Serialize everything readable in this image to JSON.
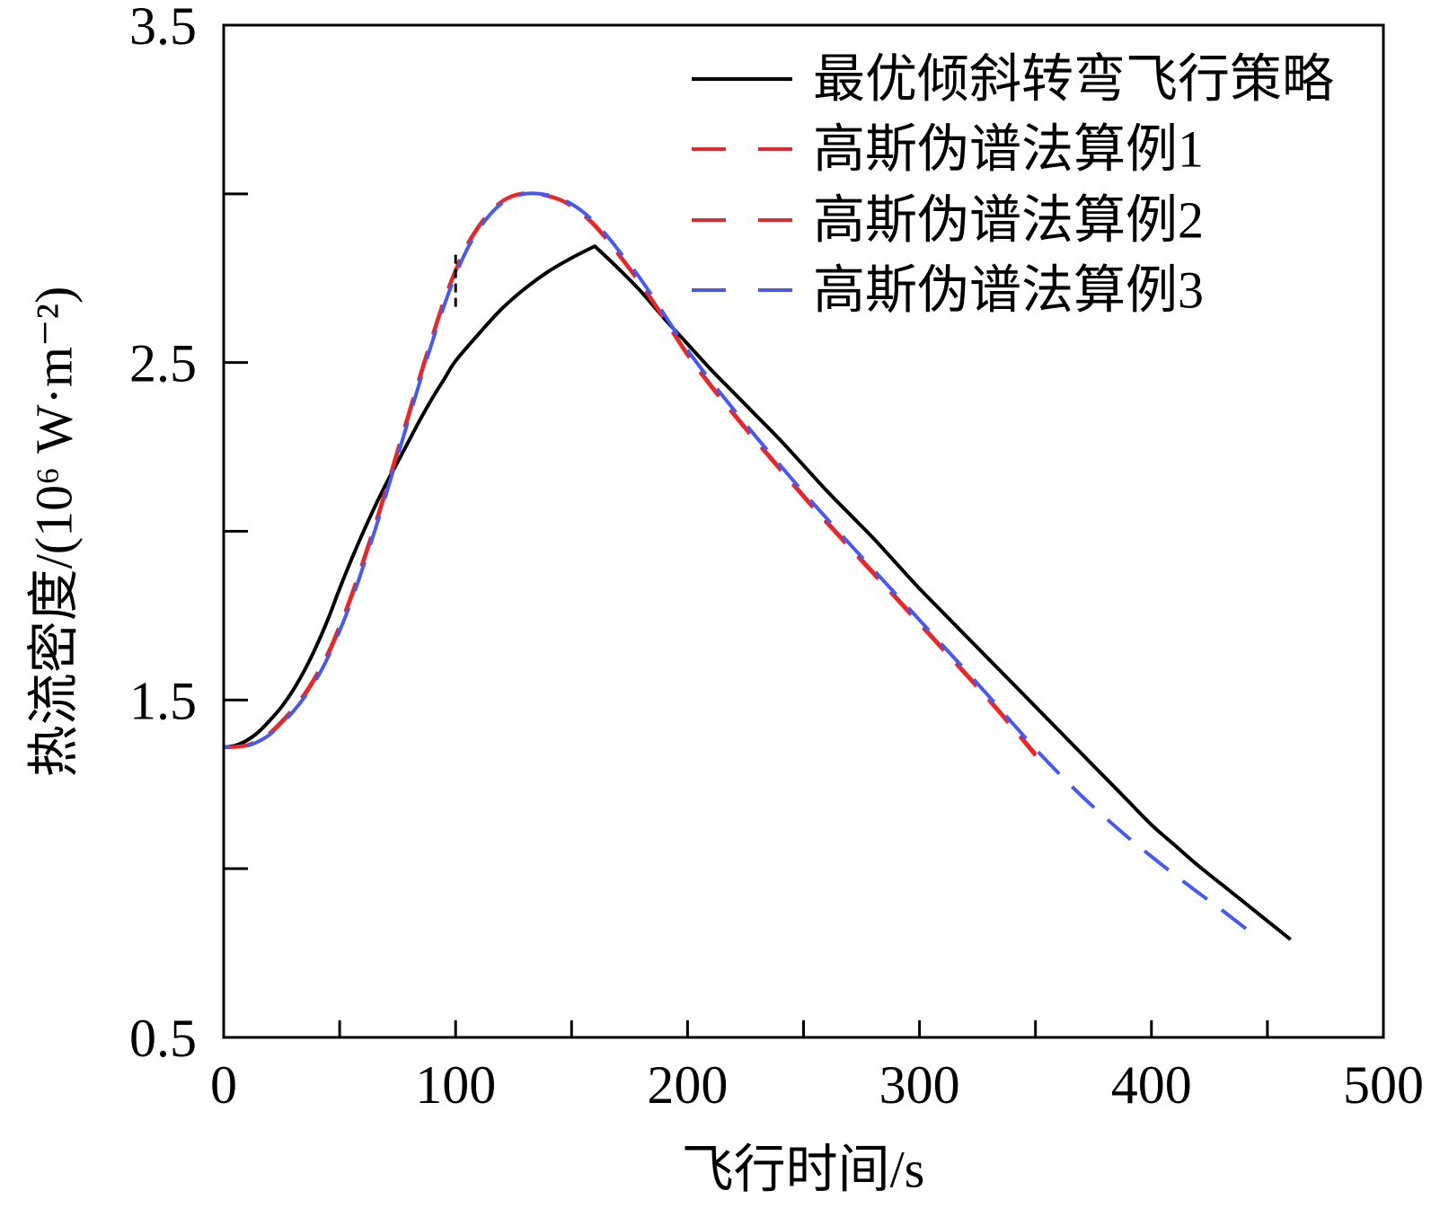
{
  "chart_data": {
    "type": "line",
    "title": "",
    "xlabel": "飞行时间/s",
    "ylabel": "热流密度/(10⁶ W·m⁻²)",
    "xlim": [
      0,
      500
    ],
    "ylim": [
      0.5,
      3.5
    ],
    "x_ticks": [
      0,
      50,
      100,
      150,
      200,
      250,
      300,
      350,
      400,
      450,
      500
    ],
    "x_labeled_ticks": [
      0,
      100,
      200,
      300,
      400,
      500
    ],
    "x_tick_labels": [
      "0",
      "100",
      "200",
      "300",
      "400",
      "500"
    ],
    "y_ticks": [
      0.5,
      1.0,
      1.5,
      2.0,
      2.5,
      3.0,
      3.5
    ],
    "y_labeled_ticks": [
      0.5,
      1.5,
      2.5,
      3.5
    ],
    "y_tick_labels": [
      "0.5",
      "1.5",
      "2.5",
      "3.5"
    ],
    "grid": false,
    "legend_position": "top-right",
    "series": [
      {
        "name": "最优倾斜转弯飞行策略",
        "color": "#000000",
        "dashed": false,
        "sharp_peak": true,
        "x": [
          0,
          5,
          10,
          15,
          20,
          25,
          30,
          35,
          40,
          45,
          50,
          55,
          60,
          65,
          70,
          75,
          80,
          85,
          90,
          95,
          100,
          110,
          120,
          130,
          140,
          150,
          160,
          170,
          180,
          190,
          200,
          210,
          220,
          230,
          240,
          250,
          260,
          270,
          280,
          290,
          300,
          310,
          320,
          330,
          340,
          350,
          360,
          370,
          380,
          390,
          400,
          410,
          420,
          430,
          440,
          450,
          460
        ],
        "y": [
          1.36,
          1.365,
          1.38,
          1.405,
          1.44,
          1.48,
          1.53,
          1.59,
          1.66,
          1.74,
          1.83,
          1.915,
          1.995,
          2.07,
          2.14,
          2.205,
          2.27,
          2.335,
          2.395,
          2.45,
          2.505,
          2.585,
          2.66,
          2.72,
          2.77,
          2.81,
          2.845,
          2.78,
          2.71,
          2.63,
          2.555,
          2.48,
          2.41,
          2.34,
          2.27,
          2.195,
          2.12,
          2.05,
          1.98,
          1.905,
          1.83,
          1.76,
          1.69,
          1.62,
          1.55,
          1.48,
          1.41,
          1.34,
          1.27,
          1.2,
          1.13,
          1.07,
          1.01,
          0.955,
          0.9,
          0.845,
          0.79
        ]
      },
      {
        "name": "高斯伪谱法算例1",
        "color": "#e62828",
        "dashed": true,
        "sharp_peak": false,
        "x": [
          0,
          5,
          10,
          15,
          20,
          25,
          30,
          35,
          40,
          45,
          50,
          55,
          60,
          65,
          70,
          75,
          80,
          85,
          90,
          95,
          100,
          105,
          110,
          115,
          120,
          125,
          130,
          135,
          140,
          145,
          150,
          155,
          160,
          165,
          170,
          180,
          190,
          200,
          210,
          220,
          230,
          240,
          250,
          260,
          270,
          280,
          290,
          300,
          310,
          320,
          330,
          340,
          350
        ],
        "y": [
          1.36,
          1.362,
          1.366,
          1.38,
          1.403,
          1.437,
          1.475,
          1.52,
          1.575,
          1.64,
          1.72,
          1.81,
          1.91,
          2.015,
          2.125,
          2.24,
          2.355,
          2.47,
          2.58,
          2.685,
          2.775,
          2.85,
          2.905,
          2.948,
          2.978,
          2.995,
          3.002,
          3.0,
          2.993,
          2.982,
          2.963,
          2.938,
          2.905,
          2.866,
          2.822,
          2.73,
          2.628,
          2.522,
          2.43,
          2.345,
          2.262,
          2.182,
          2.102,
          2.025,
          1.95,
          1.875,
          1.8,
          1.725,
          1.65,
          1.575,
          1.498,
          1.418,
          1.335
        ]
      },
      {
        "name": "高斯伪谱法算例2",
        "color": "#e62828",
        "dashed": true,
        "sharp_peak": false,
        "x": [
          0,
          5,
          10,
          15,
          20,
          25,
          30,
          35,
          40,
          45,
          50,
          55,
          60,
          65,
          70,
          75,
          80,
          85,
          90,
          95,
          100,
          105,
          110,
          115,
          120,
          125,
          130,
          135,
          140,
          145,
          150,
          155,
          160,
          165,
          170,
          180,
          190,
          200,
          210,
          220,
          230,
          240,
          250,
          260,
          270,
          280,
          290,
          300,
          310,
          320,
          330,
          340,
          350
        ],
        "y": [
          1.36,
          1.361,
          1.365,
          1.378,
          1.4,
          1.433,
          1.471,
          1.515,
          1.57,
          1.634,
          1.713,
          1.803,
          1.903,
          2.008,
          2.118,
          2.233,
          2.348,
          2.463,
          2.574,
          2.68,
          2.771,
          2.846,
          2.902,
          2.946,
          2.977,
          2.994,
          3.001,
          3.0,
          2.994,
          2.983,
          2.965,
          2.94,
          2.908,
          2.869,
          2.825,
          2.733,
          2.631,
          2.526,
          2.434,
          2.349,
          2.266,
          2.186,
          2.106,
          2.029,
          1.954,
          1.879,
          1.804,
          1.729,
          1.654,
          1.579,
          1.502,
          1.422,
          1.34
        ]
      },
      {
        "name": "高斯伪谱法算例3",
        "color": "#465af0",
        "dashed": true,
        "sharp_peak": false,
        "x": [
          0,
          5,
          10,
          15,
          20,
          25,
          30,
          35,
          40,
          45,
          50,
          55,
          60,
          65,
          70,
          75,
          80,
          85,
          90,
          95,
          100,
          105,
          110,
          115,
          120,
          125,
          130,
          135,
          140,
          145,
          150,
          155,
          160,
          165,
          170,
          180,
          190,
          200,
          210,
          220,
          230,
          240,
          250,
          260,
          270,
          280,
          290,
          300,
          310,
          320,
          330,
          340,
          350,
          360,
          370,
          380,
          390,
          400,
          410,
          420,
          430,
          440,
          444
        ],
        "y": [
          1.36,
          1.36,
          1.364,
          1.377,
          1.398,
          1.43,
          1.466,
          1.51,
          1.562,
          1.627,
          1.705,
          1.792,
          1.892,
          1.998,
          2.108,
          2.223,
          2.338,
          2.453,
          2.563,
          2.668,
          2.76,
          2.836,
          2.895,
          2.94,
          2.972,
          2.991,
          3.0,
          3.001,
          2.996,
          2.986,
          2.97,
          2.946,
          2.915,
          2.878,
          2.835,
          2.745,
          2.642,
          2.537,
          2.446,
          2.36,
          2.276,
          2.195,
          2.115,
          2.038,
          1.962,
          1.887,
          1.812,
          1.737,
          1.662,
          1.587,
          1.51,
          1.432,
          1.355,
          1.283,
          1.215,
          1.152,
          1.092,
          1.036,
          0.982,
          0.93,
          0.879,
          0.826,
          0.805
        ]
      }
    ],
    "annotations": [
      {
        "x": 100,
        "y_from": 2.665,
        "y_to": 2.83,
        "color": "#000000",
        "dashed": true
      }
    ]
  }
}
